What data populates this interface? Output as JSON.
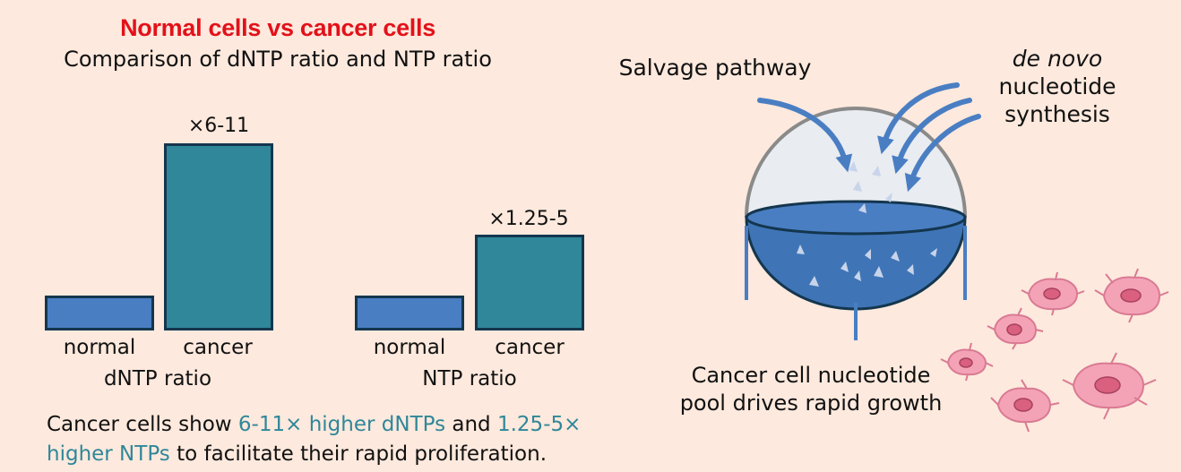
{
  "title": "Normal cells vs cancer cells",
  "subtitle": "Comparison of dNTP ratio and NTP ratio",
  "chart_data": [
    {
      "type": "bar",
      "xlabel": "dNTP ratio",
      "categories": [
        "normal",
        "cancer"
      ],
      "values": [
        1,
        6
      ],
      "annotation": "×6-11"
    },
    {
      "type": "bar",
      "xlabel": "NTP ratio",
      "categories": [
        "normal",
        "cancer"
      ],
      "values": [
        1,
        3
      ],
      "annotation": "×1.25-5"
    }
  ],
  "caption": {
    "part1": "Cancer cells show ",
    "hl1": "6-11× higher dNTPs",
    "part2": " and ",
    "hl2": "1.25-5×",
    "hl3": "higher NTPs",
    "part3": " to facilitate their rapid proliferation."
  },
  "diagram": {
    "salvage_label": "Salvage pathway",
    "denovo_italic": "de novo",
    "denovo_line2": "nucleotide",
    "denovo_line3": "synthesis",
    "pool_line1": "Cancer cell nucleotide",
    "pool_line2": "pool drives rapid growth"
  },
  "colors": {
    "background": "#fde9dd",
    "title": "#e3111a",
    "normal_bar": "#4a7ec3",
    "cancer_bar": "#2f8799",
    "highlight": "#2f8799",
    "arrow": "#4a7ec3",
    "cell": "#f4a3b7"
  }
}
